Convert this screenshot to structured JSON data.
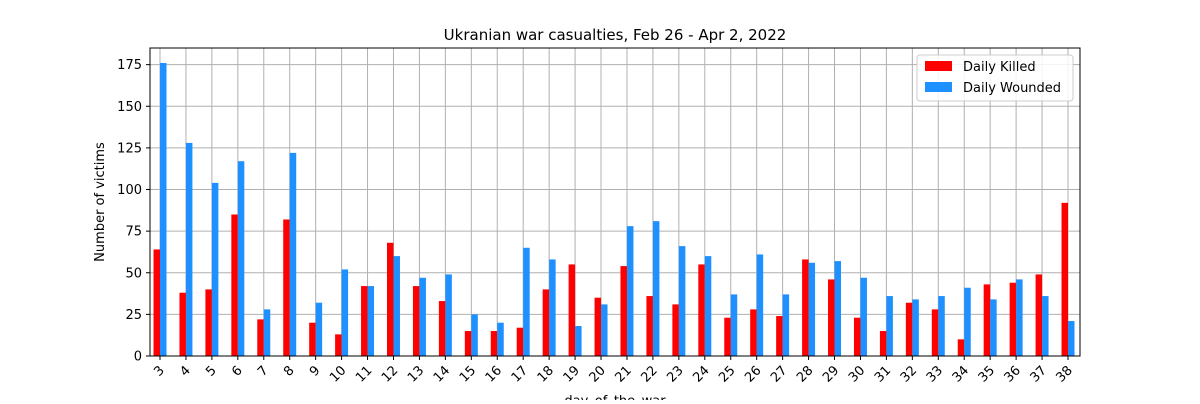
{
  "chart_data": {
    "type": "bar",
    "title": "Ukranian war casualties, Feb 26 - Apr 2, 2022",
    "xlabel": "day_of_the_war",
    "ylabel": "Number of victims",
    "ylim": [
      0,
      185
    ],
    "yticks": [
      0,
      25,
      50,
      75,
      100,
      125,
      150,
      175
    ],
    "grid": true,
    "legend_position": "top-right",
    "categories": [
      "3",
      "4",
      "5",
      "6",
      "7",
      "8",
      "9",
      "10",
      "11",
      "12",
      "13",
      "14",
      "15",
      "16",
      "17",
      "18",
      "19",
      "20",
      "21",
      "22",
      "23",
      "24",
      "25",
      "26",
      "27",
      "28",
      "29",
      "30",
      "31",
      "32",
      "33",
      "34",
      "35",
      "36",
      "37",
      "38"
    ],
    "series": [
      {
        "name": "Daily Killed",
        "color": "#ff0000",
        "values": [
          64,
          38,
          40,
          85,
          22,
          82,
          20,
          13,
          42,
          68,
          42,
          33,
          15,
          15,
          17,
          40,
          55,
          35,
          54,
          36,
          31,
          55,
          23,
          28,
          24,
          58,
          46,
          23,
          15,
          32,
          28,
          10,
          43,
          44,
          49,
          92
        ]
      },
      {
        "name": "Daily Wounded",
        "color": "#1e90ff",
        "values": [
          176,
          128,
          104,
          117,
          28,
          122,
          32,
          52,
          42,
          60,
          47,
          49,
          25,
          20,
          65,
          58,
          18,
          31,
          78,
          81,
          66,
          60,
          37,
          61,
          37,
          56,
          57,
          47,
          36,
          34,
          36,
          41,
          34,
          46,
          36,
          21
        ]
      }
    ]
  }
}
